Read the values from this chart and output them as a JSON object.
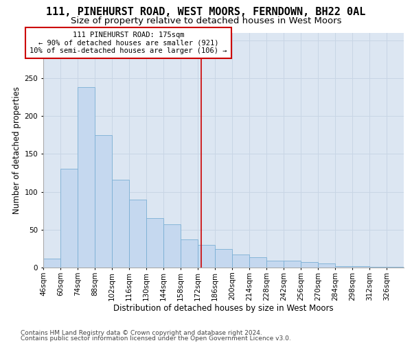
{
  "title_line1": "111, PINEHURST ROAD, WEST MOORS, FERNDOWN, BH22 0AL",
  "title_line2": "Size of property relative to detached houses in West Moors",
  "xlabel": "Distribution of detached houses by size in West Moors",
  "ylabel": "Number of detached properties",
  "footnote1": "Contains HM Land Registry data © Crown copyright and database right 2024.",
  "footnote2": "Contains public sector information licensed under the Open Government Licence v3.0.",
  "annotation_title": "111 PINEHURST ROAD: 175sqm",
  "annotation_line2": "← 90% of detached houses are smaller (921)",
  "annotation_line3": "10% of semi-detached houses are larger (106) →",
  "bin_starts": [
    46,
    60,
    74,
    88,
    102,
    116,
    130,
    144,
    158,
    172,
    186,
    200,
    214,
    228,
    242,
    256,
    270,
    284,
    298,
    312,
    326
  ],
  "bin_width": 14,
  "bin_heights": [
    12,
    130,
    238,
    175,
    116,
    90,
    65,
    57,
    37,
    30,
    24,
    17,
    14,
    9,
    9,
    7,
    5,
    2,
    2,
    1,
    1
  ],
  "bin_labels": [
    "46sqm",
    "60sqm",
    "74sqm",
    "88sqm",
    "102sqm",
    "116sqm",
    "130sqm",
    "144sqm",
    "158sqm",
    "172sqm",
    "186sqm",
    "200sqm",
    "214sqm",
    "228sqm",
    "242sqm",
    "256sqm",
    "270sqm",
    "284sqm",
    "298sqm",
    "312sqm",
    "326sqm"
  ],
  "bar_color": "#c5d8ef",
  "bar_edge_color": "#7aafd4",
  "vline_x": 175,
  "vline_color": "#cc0000",
  "ylim": [
    0,
    310
  ],
  "xlim_left": 46,
  "xlim_right": 340,
  "grid_color": "#c8d5e5",
  "bg_color": "#dce6f2",
  "title_fontsize": 11,
  "subtitle_fontsize": 9.5,
  "ylabel_fontsize": 8.5,
  "xlabel_fontsize": 8.5,
  "tick_fontsize": 7.5,
  "annot_fontsize": 7.5,
  "footnote_fontsize": 6.5
}
